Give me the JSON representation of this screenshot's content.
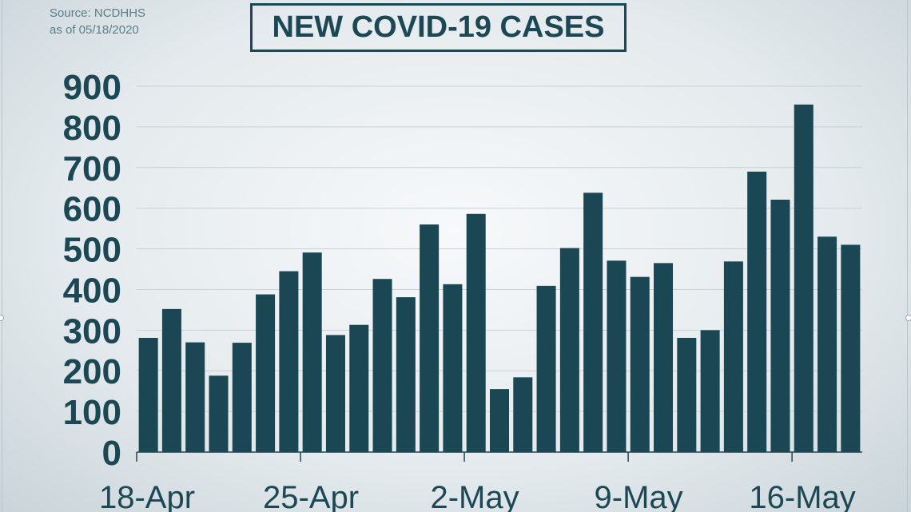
{
  "source": {
    "line1": "Source: NCDHHS",
    "line2": "as of 05/18/2020"
  },
  "colors": {
    "bar": "#1b4754",
    "text": "#1c4754",
    "grid": "#c9d1d5",
    "axis": "#1c4754"
  },
  "chart_data": {
    "type": "bar",
    "title": "NEW COVID-19 CASES",
    "xlabel": "",
    "ylabel": "",
    "ylim": [
      0,
      900
    ],
    "yticks": [
      0,
      100,
      200,
      300,
      400,
      500,
      600,
      700,
      800,
      900
    ],
    "grid": true,
    "legend": "none",
    "x_tick_labels": [
      {
        "label": "18-Apr",
        "index": 0
      },
      {
        "label": "25-Apr",
        "index": 7
      },
      {
        "label": "2-May",
        "index": 14
      },
      {
        "label": "9-May",
        "index": 21
      },
      {
        "label": "16-May",
        "index": 28
      }
    ],
    "categories": [
      "18-Apr",
      "19-Apr",
      "20-Apr",
      "21-Apr",
      "22-Apr",
      "23-Apr",
      "24-Apr",
      "25-Apr",
      "26-Apr",
      "27-Apr",
      "28-Apr",
      "29-Apr",
      "30-Apr",
      "1-May",
      "2-May",
      "3-May",
      "4-May",
      "5-May",
      "6-May",
      "7-May",
      "8-May",
      "9-May",
      "10-May",
      "11-May",
      "12-May",
      "13-May",
      "14-May",
      "15-May",
      "16-May",
      "17-May",
      "18-May"
    ],
    "values": [
      281,
      352,
      270,
      188,
      269,
      388,
      445,
      491,
      288,
      313,
      426,
      381,
      560,
      413,
      586,
      155,
      184,
      409,
      502,
      638,
      471,
      431,
      465,
      281,
      300,
      469,
      690,
      621,
      855,
      530,
      510
    ]
  }
}
